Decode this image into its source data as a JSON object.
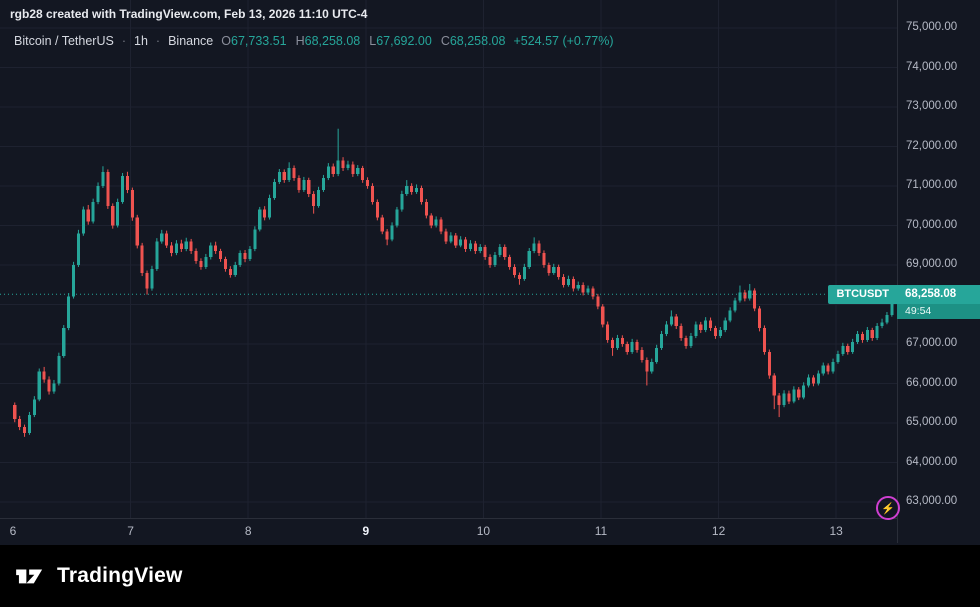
{
  "header": {
    "note": "rgb28 created with TradingView.com, Feb 13, 2026 11:10 UTC-4"
  },
  "legend": {
    "symbol": "Bitcoin / TetherUS",
    "sep": "·",
    "interval": "1h",
    "exchange": "Binance",
    "o_label": "O",
    "o": "67,733.51",
    "h_label": "H",
    "h": "68,258.08",
    "l_label": "L",
    "l": "67,692.00",
    "c_label": "C",
    "c": "68,258.08",
    "change": "+524.57 (+0.77%)"
  },
  "price_label": {
    "symbol": "BTCUSDT",
    "price": "68,258.08",
    "countdown": "49:54"
  },
  "price_scale": {
    "ticks": [
      "75,000.00",
      "74,000.00",
      "73,000.00",
      "72,000.00",
      "71,000.00",
      "70,000.00",
      "69,000.00",
      "68,000.00",
      "67,000.00",
      "66,000.00",
      "65,000.00",
      "64,000.00",
      "63,000.00"
    ]
  },
  "time_scale": {
    "ticks": [
      {
        "label": "6",
        "hour": 0,
        "bold": false
      },
      {
        "label": "7",
        "hour": 24,
        "bold": false
      },
      {
        "label": "8",
        "hour": 48,
        "bold": false
      },
      {
        "label": "9",
        "hour": 72,
        "bold": true
      },
      {
        "label": "10",
        "hour": 96,
        "bold": false
      },
      {
        "label": "11",
        "hour": 120,
        "bold": false
      },
      {
        "label": "12",
        "hour": 144,
        "bold": false
      },
      {
        "label": "13",
        "hour": 168,
        "bold": false
      }
    ]
  },
  "misc": {
    "flash_glyph": "⚡"
  },
  "footer": {
    "brand": "TradingView"
  },
  "colors": {
    "up": "#26a69a",
    "down": "#ef5350",
    "grid": "#1e2230",
    "bg": "#131722",
    "axis_text": "#b6bac6",
    "current_line": "#26a69a"
  },
  "chart_data": {
    "type": "candlestick",
    "title": "Bitcoin / TetherUS · 1h · Binance",
    "symbol": "BTCUSDT",
    "interval": "1h",
    "start": "Feb 6, 00:00",
    "hours_per_candle": 1,
    "ylim": [
      63000,
      75000
    ],
    "y_tick_step": 1000,
    "x_tick_labels": [
      "6",
      "7",
      "8",
      "9",
      "10",
      "11",
      "12",
      "13"
    ],
    "grid": true,
    "current_price": 68258.08,
    "countdown": "49:54",
    "last_candle": {
      "open": 67733.51,
      "high": 68258.08,
      "low": 67692.0,
      "close": 68258.08,
      "change": "+524.57 (+0.77%)"
    },
    "candles": [
      [
        65450,
        65520,
        65020,
        65100
      ],
      [
        65100,
        65180,
        64820,
        64900
      ],
      [
        64900,
        64960,
        64650,
        64750
      ],
      [
        64750,
        65280,
        64700,
        65200
      ],
      [
        65200,
        65680,
        65150,
        65600
      ],
      [
        65600,
        66380,
        65550,
        66300
      ],
      [
        66300,
        66420,
        66020,
        66100
      ],
      [
        66100,
        66180,
        65720,
        65800
      ],
      [
        65800,
        66090,
        65740,
        66000
      ],
      [
        66000,
        66780,
        65950,
        66700
      ],
      [
        66700,
        67480,
        66650,
        67400
      ],
      [
        67400,
        68290,
        67350,
        68200
      ],
      [
        68200,
        69080,
        68150,
        69000
      ],
      [
        69000,
        69890,
        68950,
        69800
      ],
      [
        69800,
        70480,
        69740,
        70400
      ],
      [
        70400,
        70520,
        70020,
        70100
      ],
      [
        70100,
        70680,
        70050,
        70600
      ],
      [
        70600,
        71090,
        70540,
        71000
      ],
      [
        71000,
        71500,
        70950,
        71350
      ],
      [
        71350,
        71420,
        70420,
        70500
      ],
      [
        70500,
        70560,
        69920,
        70000
      ],
      [
        70000,
        70680,
        69950,
        70600
      ],
      [
        70600,
        71330,
        70550,
        71250
      ],
      [
        71250,
        71360,
        70820,
        70900
      ],
      [
        70900,
        70960,
        70120,
        70200
      ],
      [
        70200,
        70270,
        69420,
        69500
      ],
      [
        69500,
        69560,
        68720,
        68800
      ],
      [
        68800,
        68860,
        68250,
        68400
      ],
      [
        68400,
        68980,
        68350,
        68900
      ],
      [
        68900,
        69680,
        68850,
        69600
      ],
      [
        69600,
        69890,
        69540,
        69800
      ],
      [
        69800,
        69870,
        69430,
        69500
      ],
      [
        69500,
        69580,
        69220,
        69300
      ],
      [
        69300,
        69630,
        69250,
        69550
      ],
      [
        69550,
        69640,
        69330,
        69400
      ],
      [
        69400,
        69690,
        69350,
        69600
      ],
      [
        69600,
        69660,
        69280,
        69350
      ],
      [
        69350,
        69420,
        69030,
        69100
      ],
      [
        69100,
        69170,
        68880,
        68950
      ],
      [
        68950,
        69280,
        68900,
        69200
      ],
      [
        69200,
        69570,
        69140,
        69500
      ],
      [
        69500,
        69590,
        69280,
        69350
      ],
      [
        69350,
        69410,
        69080,
        69150
      ],
      [
        69150,
        69210,
        68830,
        68900
      ],
      [
        68900,
        68970,
        68680,
        68750
      ],
      [
        68750,
        69080,
        68700,
        69000
      ],
      [
        69000,
        69370,
        68950,
        69300
      ],
      [
        69300,
        69380,
        69070,
        69150
      ],
      [
        69150,
        69480,
        69100,
        69400
      ],
      [
        69400,
        69980,
        69350,
        69900
      ],
      [
        69900,
        70470,
        69850,
        70400
      ],
      [
        70400,
        70490,
        70130,
        70200
      ],
      [
        70200,
        70780,
        70150,
        70700
      ],
      [
        70700,
        71180,
        70650,
        71100
      ],
      [
        71100,
        71430,
        71050,
        71350
      ],
      [
        71350,
        71420,
        71080,
        71150
      ],
      [
        71150,
        71600,
        71100,
        71450
      ],
      [
        71450,
        71520,
        71130,
        71200
      ],
      [
        71200,
        71270,
        70830,
        70900
      ],
      [
        70900,
        71230,
        70850,
        71150
      ],
      [
        71150,
        71210,
        70720,
        70800
      ],
      [
        70800,
        70870,
        70300,
        70500
      ],
      [
        70500,
        70980,
        70450,
        70900
      ],
      [
        70900,
        71280,
        70850,
        71200
      ],
      [
        71200,
        71580,
        71150,
        71500
      ],
      [
        71500,
        71570,
        71230,
        71300
      ],
      [
        71300,
        72450,
        71250,
        71650
      ],
      [
        71650,
        71730,
        71380,
        71450
      ],
      [
        71450,
        71640,
        71400,
        71550
      ],
      [
        71550,
        71620,
        71230,
        71300
      ],
      [
        71300,
        71530,
        71250,
        71450
      ],
      [
        71450,
        71510,
        71080,
        71150
      ],
      [
        71150,
        71220,
        70930,
        71000
      ],
      [
        71000,
        71070,
        70530,
        70600
      ],
      [
        70600,
        70660,
        70130,
        70200
      ],
      [
        70200,
        70270,
        69780,
        69850
      ],
      [
        69850,
        69910,
        69500,
        69650
      ],
      [
        69650,
        70080,
        69600,
        70000
      ],
      [
        70000,
        70470,
        69950,
        70400
      ],
      [
        70400,
        70880,
        70350,
        70800
      ],
      [
        70800,
        71150,
        70750,
        71000
      ],
      [
        71000,
        71070,
        70780,
        70850
      ],
      [
        70850,
        71040,
        70800,
        70950
      ],
      [
        70950,
        71010,
        70530,
        70600
      ],
      [
        70600,
        70670,
        70180,
        70250
      ],
      [
        70250,
        70310,
        69930,
        70000
      ],
      [
        70000,
        70230,
        69950,
        70150
      ],
      [
        70150,
        70210,
        69780,
        69850
      ],
      [
        69850,
        69920,
        69530,
        69600
      ],
      [
        69600,
        69830,
        69550,
        69750
      ],
      [
        69750,
        69810,
        69430,
        69500
      ],
      [
        69500,
        69730,
        69450,
        69650
      ],
      [
        69650,
        69710,
        69330,
        69400
      ],
      [
        69400,
        69630,
        69350,
        69550
      ],
      [
        69550,
        69610,
        69280,
        69350
      ],
      [
        69350,
        69530,
        69300,
        69450
      ],
      [
        69450,
        69510,
        69130,
        69200
      ],
      [
        69200,
        69270,
        68930,
        69000
      ],
      [
        69000,
        69330,
        68950,
        69250
      ],
      [
        69250,
        69530,
        69200,
        69450
      ],
      [
        69450,
        69520,
        69130,
        69200
      ],
      [
        69200,
        69260,
        68880,
        68950
      ],
      [
        68950,
        69020,
        68680,
        68750
      ],
      [
        68750,
        68810,
        68500,
        68650
      ],
      [
        68650,
        69030,
        68600,
        68950
      ],
      [
        68950,
        69430,
        68900,
        69350
      ],
      [
        69350,
        69700,
        69300,
        69550
      ],
      [
        69550,
        69620,
        69230,
        69300
      ],
      [
        69300,
        69370,
        68930,
        69000
      ],
      [
        69000,
        69060,
        68730,
        68800
      ],
      [
        68800,
        69030,
        68750,
        68950
      ],
      [
        68950,
        69010,
        68630,
        68700
      ],
      [
        68700,
        68770,
        68430,
        68500
      ],
      [
        68500,
        68730,
        68450,
        68650
      ],
      [
        68650,
        68710,
        68330,
        68400
      ],
      [
        68400,
        68580,
        68350,
        68500
      ],
      [
        68500,
        68560,
        68230,
        68300
      ],
      [
        68300,
        68480,
        68250,
        68400
      ],
      [
        68400,
        68460,
        68130,
        68200
      ],
      [
        68200,
        68270,
        67880,
        67950
      ],
      [
        67950,
        68010,
        67420,
        67500
      ],
      [
        67500,
        67570,
        67030,
        67100
      ],
      [
        67100,
        67160,
        66700,
        66900
      ],
      [
        66900,
        67230,
        66850,
        67150
      ],
      [
        67150,
        67220,
        66930,
        67000
      ],
      [
        67000,
        67060,
        66730,
        66800
      ],
      [
        66800,
        67130,
        66750,
        67050
      ],
      [
        67050,
        67110,
        66780,
        66850
      ],
      [
        66850,
        66920,
        66530,
        66600
      ],
      [
        66600,
        66660,
        65950,
        66300
      ],
      [
        66300,
        66630,
        66250,
        66550
      ],
      [
        66550,
        66980,
        66500,
        66900
      ],
      [
        66900,
        67330,
        66850,
        67250
      ],
      [
        67250,
        67580,
        67200,
        67500
      ],
      [
        67500,
        67850,
        67450,
        67700
      ],
      [
        67700,
        67760,
        67380,
        67450
      ],
      [
        67450,
        67520,
        67080,
        67150
      ],
      [
        67150,
        67210,
        66880,
        66950
      ],
      [
        66950,
        67280,
        66900,
        67200
      ],
      [
        67200,
        67570,
        67150,
        67500
      ],
      [
        67500,
        67560,
        67280,
        67350
      ],
      [
        67350,
        67680,
        67300,
        67600
      ],
      [
        67600,
        67670,
        67330,
        67400
      ],
      [
        67400,
        67460,
        67130,
        67200
      ],
      [
        67200,
        67430,
        67150,
        67350
      ],
      [
        67350,
        67670,
        67300,
        67600
      ],
      [
        67600,
        67930,
        67550,
        67850
      ],
      [
        67850,
        68170,
        67800,
        68100
      ],
      [
        68100,
        68480,
        68050,
        68300
      ],
      [
        68300,
        68370,
        68080,
        68150
      ],
      [
        68150,
        68520,
        68100,
        68350
      ],
      [
        68350,
        68410,
        67830,
        67900
      ],
      [
        67900,
        67960,
        67320,
        67400
      ],
      [
        67400,
        67470,
        66730,
        66800
      ],
      [
        66800,
        66860,
        66120,
        66200
      ],
      [
        66200,
        66260,
        65350,
        65700
      ],
      [
        65700,
        65760,
        65150,
        65450
      ],
      [
        65450,
        65830,
        65400,
        65750
      ],
      [
        65750,
        65820,
        65480,
        65550
      ],
      [
        65550,
        65930,
        65500,
        65850
      ],
      [
        65850,
        65910,
        65580,
        65650
      ],
      [
        65650,
        66030,
        65600,
        65950
      ],
      [
        65950,
        66230,
        65900,
        66150
      ],
      [
        66150,
        66210,
        65930,
        66000
      ],
      [
        66000,
        66330,
        65950,
        66250
      ],
      [
        66250,
        66530,
        66200,
        66450
      ],
      [
        66450,
        66510,
        66230,
        66300
      ],
      [
        66300,
        66630,
        66250,
        66550
      ],
      [
        66550,
        66830,
        66500,
        66750
      ],
      [
        66750,
        67030,
        66700,
        66950
      ],
      [
        66950,
        67010,
        66730,
        66800
      ],
      [
        66800,
        67130,
        66750,
        67050
      ],
      [
        67050,
        67330,
        67000,
        67250
      ],
      [
        67250,
        67310,
        67030,
        67100
      ],
      [
        67100,
        67430,
        67050,
        67350
      ],
      [
        67350,
        67410,
        67080,
        67150
      ],
      [
        67150,
        67530,
        67100,
        67450
      ],
      [
        67450,
        67640,
        67400,
        67550
      ],
      [
        67550,
        67810,
        67500,
        67733.51
      ],
      [
        67733.51,
        68258.08,
        67692.0,
        68258.08
      ]
    ]
  }
}
